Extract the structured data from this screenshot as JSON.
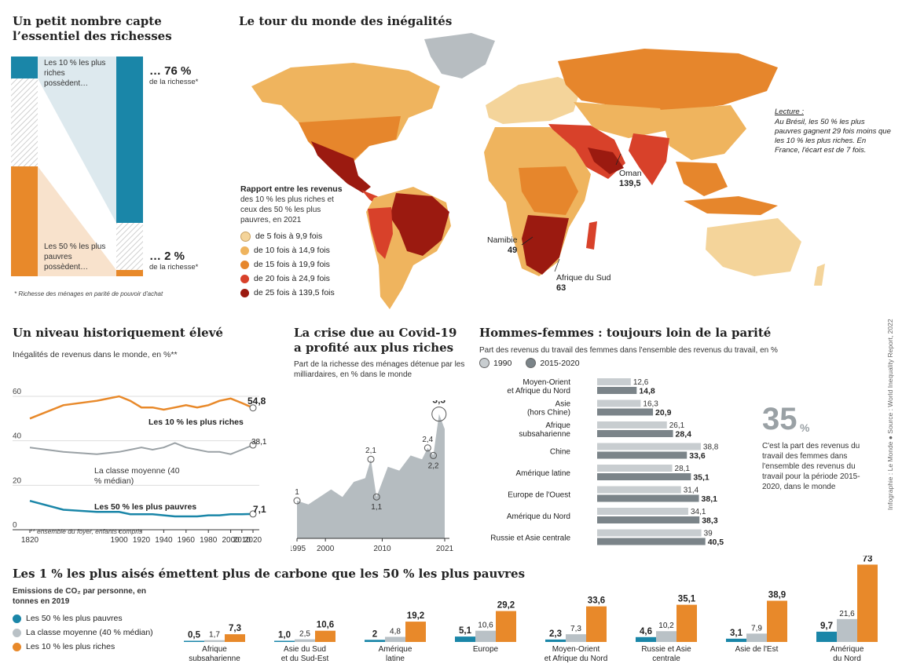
{
  "wealth": {
    "title": "Un petit nombre capte l’essentiel des richesses",
    "top_label": "Les 10 % les plus riches possèdent…",
    "top_value": "… 76 %",
    "top_value_sub": "de la richesse*",
    "bottom_label": "Les 50 % les plus pauvres possèdent…",
    "bottom_value": "… 2 %",
    "bottom_value_sub": "de la richesse*",
    "footnote": "* Richesse des ménages en parité de pouvoir d'achat",
    "colors": {
      "top": "#1a86a8",
      "bottom": "#e8892a",
      "hatch": "#d0d0d0"
    }
  },
  "world": {
    "title": "Le tour du monde des inégalités",
    "legend_title": "Rapport entre les revenus",
    "legend_sub": "des 10 % les plus riches et ceux des 50 % les plus pauvres, en 2021",
    "legend": [
      {
        "label": "de 5 fois à 9,9 fois",
        "color": "#f4d49a"
      },
      {
        "label": "de 10 fois à 14,9 fois",
        "color": "#efb45e"
      },
      {
        "label": "de 15 fois à 19,9 fois",
        "color": "#e6862c"
      },
      {
        "label": "de 20 fois à 24,9 fois",
        "color": "#d8412a"
      },
      {
        "label": "de 25 fois à 139,5 fois",
        "color": "#9b1a10"
      }
    ],
    "lecture_title": "Lecture :",
    "lecture_text": "Au Brésil, les 50 % les plus pauvres gagnent 29 fois moins que les 10 % les plus riches. En France, l'écart est de 7 fois.",
    "callouts": [
      {
        "name": "Oman",
        "value": "139,5"
      },
      {
        "name": "Namibie",
        "value": "49"
      },
      {
        "name": "Afrique du Sud",
        "value": "63"
      }
    ]
  },
  "history": {
    "title": "Un niveau historiquement élevé",
    "subtitle": "Inégalités de revenus dans le monde, en %**",
    "footnote": "** ensemble du foyer, enfants compris",
    "label_top": "Les 10 % les plus riches",
    "label_mid": "La classe moyenne (40 % médian)",
    "label_bottom": "Les 50 % les plus pauvres",
    "end_top": "54,8",
    "end_mid": "38,1",
    "end_bottom": "7,1"
  },
  "covid": {
    "title": "La crise due au Covid-19 a profité aux plus riches",
    "subtitle": "Part de la richesse des ménages détenue par les milliardaires, en % dans le monde",
    "labels": [
      "1",
      "2,1",
      "1,1",
      "2,4",
      "2,2",
      "3,3"
    ]
  },
  "gender": {
    "title": "Hommes-femmes : toujours loin de la parité",
    "subtitle": "Part des revenus du travail des femmes dans l'ensemble des revenus du travail, en %",
    "legend": [
      "1990",
      "2015-2020"
    ],
    "big_value": "35",
    "big_unit": "%",
    "big_text": "C'est la part des revenus du travail des femmes dans l'ensemble des revenus du travail pour la période 2015-2020, dans le monde",
    "value_labels": [
      [
        "12,6",
        "14,8"
      ],
      [
        "16,3",
        "20,9"
      ],
      [
        "26,1",
        "28,4"
      ],
      [
        "38,8",
        "33,6"
      ],
      [
        "28,1",
        "35,1"
      ],
      [
        "31,4",
        "38,1"
      ],
      [
        "34,1",
        "38,3"
      ],
      [
        "39",
        "40,5"
      ]
    ]
  },
  "carbon": {
    "title": "Les 1 % les plus aisés émettent plus de carbone que les 50 % les plus pauvres",
    "subtitle": "Emissions de CO₂ par personne, en tonnes en 2019",
    "legend": [
      {
        "label": "Les 50 % les plus pauvres",
        "color": "#1a86a8"
      },
      {
        "label": "La classe moyenne (40 % médian)",
        "color": "#b9c1c6"
      },
      {
        "label": "Les 10 % les plus riches",
        "color": "#e8892a"
      }
    ],
    "value_labels": [
      [
        "0,5",
        "1,7",
        "7,3"
      ],
      [
        "1,0",
        "2,5",
        "10,6"
      ],
      [
        "2",
        "4,8",
        "19,2"
      ],
      [
        "5,1",
        "10,6",
        "29,2"
      ],
      [
        "2,3",
        "7,3",
        "33,6"
      ],
      [
        "4,6",
        "10,2",
        "35,1"
      ],
      [
        "3,1",
        "7,9",
        "38,9"
      ],
      [
        "9,7",
        "21,6",
        "73"
      ]
    ]
  },
  "credit": "Infographie : Le Monde ● Source : World Inequality Report, 2022",
  "chart_data": [
    {
      "type": "bar",
      "title": "Un petit nombre capte l’essentiel des richesses",
      "categories": [
        "Les 10 % les plus riches",
        "Les 50 % les plus pauvres"
      ],
      "values": [
        76,
        2
      ]
    },
    {
      "type": "line",
      "title": "Un niveau historiquement élevé",
      "ylim": [
        0,
        60
      ],
      "yticks": [
        0,
        20,
        40,
        60
      ],
      "xticks": [
        1820,
        1900,
        1920,
        1940,
        1960,
        1980,
        2000,
        2010,
        2020
      ],
      "x": [
        1820,
        1850,
        1880,
        1900,
        1910,
        1920,
        1930,
        1940,
        1950,
        1960,
        1970,
        1980,
        1990,
        2000,
        2010,
        2020
      ],
      "series": [
        {
          "name": "Les 10 % les plus riches",
          "color": "#e8892a",
          "values": [
            50,
            56,
            58,
            60,
            58,
            55,
            55,
            54,
            55,
            56,
            55,
            56,
            58,
            59,
            57,
            54.8
          ]
        },
        {
          "name": "La classe moyenne (40 % médian)",
          "color": "#9aa1a5",
          "values": [
            37,
            35,
            34,
            35,
            36,
            37,
            36,
            37,
            39,
            37,
            36,
            35,
            35,
            34,
            36,
            38.1
          ]
        },
        {
          "name": "Les 50 % les plus pauvres",
          "color": "#1a86a8",
          "values": [
            13,
            9,
            8,
            8,
            7,
            7,
            7,
            6.5,
            6,
            6,
            6,
            6.5,
            6.5,
            7,
            7,
            7.1
          ]
        }
      ]
    },
    {
      "type": "area",
      "title": "La crise due au Covid-19 a profité aux plus riches",
      "xticks": [
        1995,
        2000,
        2010,
        2021
      ],
      "x": [
        1995,
        1997,
        1999,
        2001,
        2003,
        2005,
        2007,
        2008,
        2009,
        2011,
        2013,
        2015,
        2017,
        2018,
        2019,
        2020,
        2021
      ],
      "values": [
        1.0,
        0.9,
        1.1,
        1.3,
        1.1,
        1.5,
        1.6,
        2.1,
        1.1,
        1.9,
        1.8,
        2.2,
        2.1,
        2.4,
        2.2,
        3.3,
        2.9
      ],
      "ylim": [
        0,
        3.5
      ]
    },
    {
      "type": "bar",
      "title": "Hommes-femmes : toujours loin de la parité",
      "categories": [
        "Moyen-Orient et Afrique du Nord",
        "Asie (hors Chine)",
        "Afrique subsaharienne",
        "Chine",
        "Amérique latine",
        "Europe de l'Ouest",
        "Amérique du Nord",
        "Russie et Asie centrale"
      ],
      "series": [
        {
          "name": "1990",
          "values": [
            12.6,
            16.3,
            26.1,
            38.8,
            28.1,
            31.4,
            34.1,
            39
          ]
        },
        {
          "name": "2015-2020",
          "values": [
            14.8,
            20.9,
            28.4,
            33.6,
            35.1,
            38.1,
            38.3,
            40.5
          ]
        }
      ]
    },
    {
      "type": "bar",
      "title": "Les 1 % les plus aisés émettent plus de carbone que les 50 % les plus pauvres",
      "categories": [
        "Afrique subsaharienne",
        "Asie du Sud et du Sud-Est",
        "Amérique latine",
        "Europe",
        "Moyen-Orient et Afrique du Nord",
        "Russie et Asie centrale",
        "Asie de l'Est",
        "Amérique du Nord"
      ],
      "series": [
        {
          "name": "Les 50 % les plus pauvres",
          "values": [
            0.5,
            1.0,
            2,
            5.1,
            2.3,
            4.6,
            3.1,
            9.7
          ]
        },
        {
          "name": "La classe moyenne (40 % médian)",
          "values": [
            1.7,
            2.5,
            4.8,
            10.6,
            7.3,
            10.2,
            7.9,
            21.6
          ]
        },
        {
          "name": "Les 10 % les plus riches",
          "values": [
            7.3,
            10.6,
            19.2,
            29.2,
            33.6,
            35.1,
            38.9,
            73
          ]
        }
      ]
    }
  ]
}
